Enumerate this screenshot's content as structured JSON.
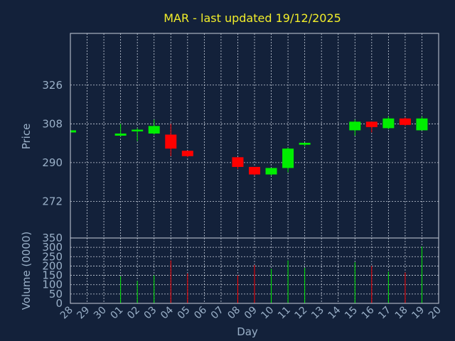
{
  "chart_data": [
    {
      "type": "candlestick",
      "title": "MAR - last updated 19/12/2025",
      "ylabel": "Price",
      "ylim": [
        255,
        350
      ],
      "yticks": [
        272,
        290,
        308,
        326
      ],
      "x_categories": [
        "28",
        "29",
        "30",
        "01",
        "02",
        "03",
        "04",
        "05",
        "06",
        "07",
        "08",
        "09",
        "10",
        "11",
        "12",
        "13",
        "14",
        "15",
        "16",
        "17",
        "18",
        "19",
        "20"
      ],
      "candles": [
        {
          "day": "28",
          "open": 304,
          "close": 305,
          "high": 305,
          "low": 304,
          "dir": "up"
        },
        {
          "day": "01",
          "open": 302.5,
          "close": 303.5,
          "high": 308,
          "low": 302,
          "dir": "up"
        },
        {
          "day": "02",
          "open": 304.5,
          "close": 305.3,
          "high": 306,
          "low": 300,
          "dir": "up"
        },
        {
          "day": "03",
          "open": 303.5,
          "close": 307,
          "high": 310,
          "low": 303,
          "dir": "up"
        },
        {
          "day": "04",
          "open": 303,
          "close": 296.5,
          "high": 308,
          "low": 293,
          "dir": "down"
        },
        {
          "day": "05",
          "open": 295.5,
          "close": 293,
          "high": 295.5,
          "low": 292.5,
          "dir": "down"
        },
        {
          "day": "08",
          "open": 292.5,
          "close": 288,
          "high": 292.5,
          "low": 287,
          "dir": "down"
        },
        {
          "day": "09",
          "open": 288,
          "close": 284.5,
          "high": 288,
          "low": 284,
          "dir": "down"
        },
        {
          "day": "10",
          "open": 284.5,
          "close": 287.5,
          "high": 287.5,
          "low": 284,
          "dir": "up"
        },
        {
          "day": "11",
          "open": 287.5,
          "close": 296.5,
          "high": 297,
          "low": 285.5,
          "dir": "up"
        },
        {
          "day": "12",
          "open": 298.3,
          "close": 299.2,
          "high": 299.2,
          "low": 297.5,
          "dir": "up"
        },
        {
          "day": "15",
          "open": 305,
          "close": 309,
          "high": 310,
          "low": 302.5,
          "dir": "up"
        },
        {
          "day": "16",
          "open": 309,
          "close": 306.5,
          "high": 309,
          "low": 304,
          "dir": "down"
        },
        {
          "day": "17",
          "open": 306,
          "close": 310.5,
          "high": 311.5,
          "low": 305.5,
          "dir": "up"
        },
        {
          "day": "18",
          "open": 310.5,
          "close": 307.5,
          "high": 311,
          "low": 307,
          "dir": "down"
        },
        {
          "day": "19",
          "open": 305,
          "close": 310.5,
          "high": 311.5,
          "low": 305,
          "dir": "up"
        }
      ],
      "colors": {
        "up": "#00ee00",
        "down": "#ff0000",
        "background": "#13213a",
        "grid": "#c8d0dc"
      }
    },
    {
      "type": "bar",
      "ylabel": "Volume (0000)",
      "xlabel": "Day",
      "ylim": [
        0,
        350
      ],
      "yticks": [
        0,
        50,
        100,
        150,
        200,
        250,
        300,
        350
      ],
      "bars": [
        {
          "day": "01",
          "value": 145,
          "dir": "up"
        },
        {
          "day": "02",
          "value": 120,
          "dir": "up"
        },
        {
          "day": "03",
          "value": 150,
          "dir": "up"
        },
        {
          "day": "04",
          "value": 230,
          "dir": "down"
        },
        {
          "day": "05",
          "value": 160,
          "dir": "down"
        },
        {
          "day": "08",
          "value": 150,
          "dir": "down"
        },
        {
          "day": "09",
          "value": 205,
          "dir": "down"
        },
        {
          "day": "10",
          "value": 185,
          "dir": "up"
        },
        {
          "day": "11",
          "value": 230,
          "dir": "up"
        },
        {
          "day": "12",
          "value": 190,
          "dir": "up"
        },
        {
          "day": "15",
          "value": 220,
          "dir": "up"
        },
        {
          "day": "16",
          "value": 200,
          "dir": "down"
        },
        {
          "day": "17",
          "value": 170,
          "dir": "up"
        },
        {
          "day": "18",
          "value": 165,
          "dir": "down"
        },
        {
          "day": "19",
          "value": 305,
          "dir": "up"
        }
      ]
    }
  ]
}
